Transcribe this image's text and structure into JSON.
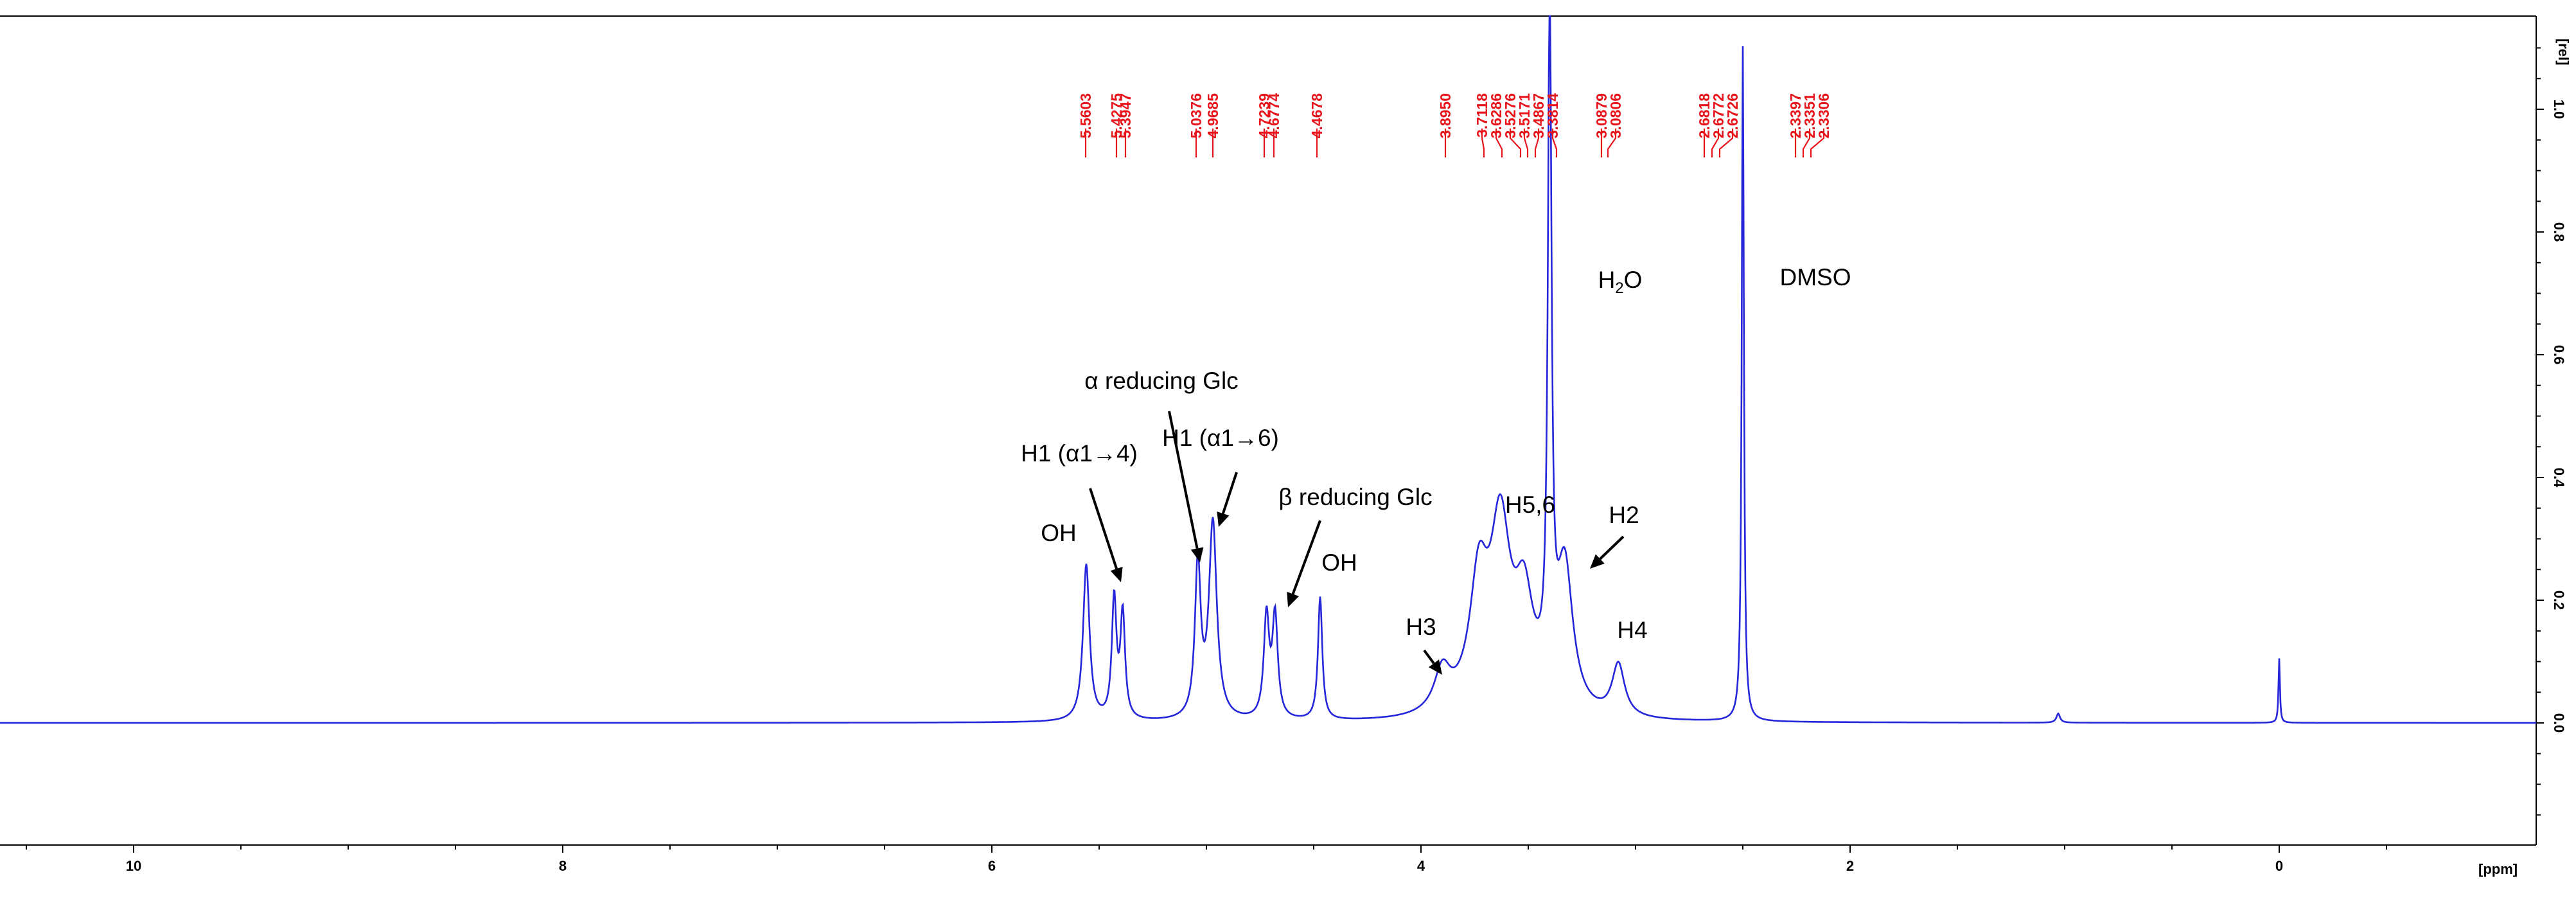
{
  "chart_data": {
    "type": "line",
    "xlabel": "[ppm]",
    "ylabel": "[rel]",
    "xlim": [
      10.5,
      -0.55
    ],
    "ylim": [
      -0.22,
      1.1
    ],
    "x_ticks": [
      10,
      8,
      6,
      4,
      2,
      0
    ],
    "y_ticks": [
      0.0,
      0.2,
      0.4,
      0.6,
      0.8,
      1.0
    ],
    "y_tick_labels": [
      "0.0",
      "0.2",
      "0.4",
      "0.6",
      "0.8",
      "1.0"
    ],
    "grid": false,
    "series_color": "#2525d9",
    "peak_label_color": "#e8141b",
    "peak_labels": [
      "5.5603",
      "5.4275",
      "5.3947",
      "5.0376",
      "4.9685",
      "4.7239",
      "4.6774",
      "4.4678",
      "3.8950",
      "3.7118",
      "3.6286",
      "3.5276",
      "3.5171",
      "3.4867",
      "3.3814",
      "3.0879",
      "3.0806",
      "2.6818",
      "2.6772",
      "2.6726",
      "2.3397",
      "2.3351",
      "2.3306"
    ],
    "peaks": [
      {
        "shift": 5.56,
        "height": 0.255
      },
      {
        "shift": 5.43,
        "height": 0.195
      },
      {
        "shift": 5.39,
        "height": 0.17
      },
      {
        "shift": 5.04,
        "height": 0.25
      },
      {
        "shift": 4.97,
        "height": 0.32
      },
      {
        "shift": 4.72,
        "height": 0.165
      },
      {
        "shift": 4.68,
        "height": 0.165
      },
      {
        "shift": 4.47,
        "height": 0.2
      },
      {
        "shift": 3.9,
        "height": 0.065
      },
      {
        "shift": 3.73,
        "height": 0.19
      },
      {
        "shift": 3.63,
        "height": 0.27
      },
      {
        "shift": 3.52,
        "height": 0.15
      },
      {
        "shift": 3.4,
        "height": 1.1
      },
      {
        "shift": 3.33,
        "height": 0.23
      },
      {
        "shift": 3.08,
        "height": 0.085
      },
      {
        "shift": 2.5,
        "height": 1.1
      },
      {
        "shift": 1.03,
        "height": 0.015
      },
      {
        "shift": 0.0,
        "height": 0.105
      }
    ],
    "annotations": [
      {
        "text": "OH"
      },
      {
        "text": "H1 (α1→4)"
      },
      {
        "text": "α reducing Glc"
      },
      {
        "text": "H1 (α1→6)"
      },
      {
        "text": "β reducing Glc"
      },
      {
        "text": "OH"
      },
      {
        "text": "H3"
      },
      {
        "text": "H5,6"
      },
      {
        "text": "H2"
      },
      {
        "text": "H4"
      },
      {
        "text": "H",
        "sub": "2",
        "tail": "O"
      },
      {
        "text": "DMSO"
      }
    ]
  }
}
